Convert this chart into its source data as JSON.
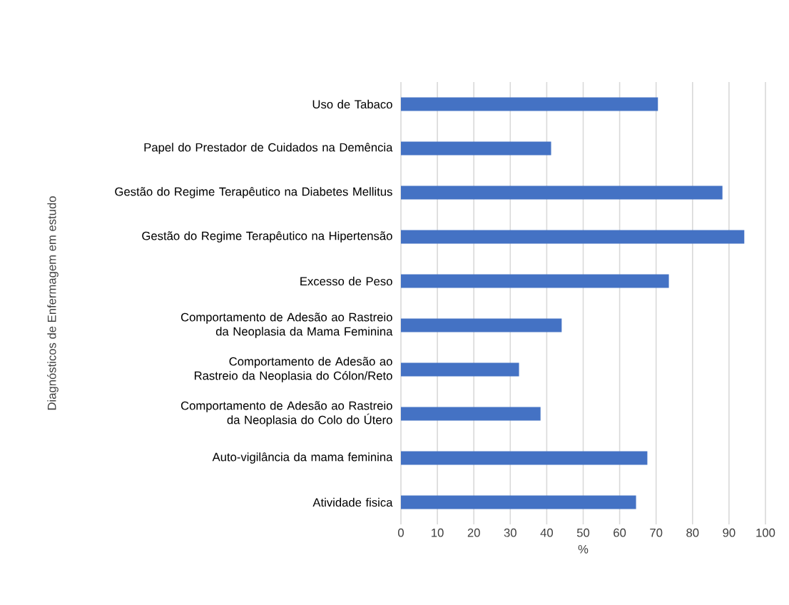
{
  "chart_data": {
    "type": "bar",
    "orientation": "horizontal",
    "categories": [
      "Uso de Tabaco",
      "Papel do Prestador de Cuidados na Demência",
      "Gestão do Regime Terapêutico na Diabetes Mellitus",
      "Gestão do Regime Terapêutico na Hipertensão",
      "Excesso de Peso",
      "Comportamento de Adesão ao Rastreio da Neoplasia da Mama Feminina",
      "Comportamento de Adesão ao Rastreio da Neoplasia do Cólon/Reto",
      "Comportamento de Adesão ao Rastreio da Neoplasia do Colo do Útero",
      "Auto-vigilância da mama feminina",
      "Atividade fisica"
    ],
    "values": [
      70.5,
      41.2,
      88.2,
      94.2,
      73.5,
      44.1,
      32.4,
      38.3,
      67.6,
      64.5
    ],
    "color": "#4472c4",
    "xlim": [
      0,
      100
    ],
    "xticks": [
      0,
      10,
      20,
      30,
      40,
      50,
      60,
      70,
      80,
      90,
      100
    ],
    "xlabel": "%",
    "ylabel": "Diagnósticos de Enfermagem em estudo",
    "grid": "x"
  }
}
